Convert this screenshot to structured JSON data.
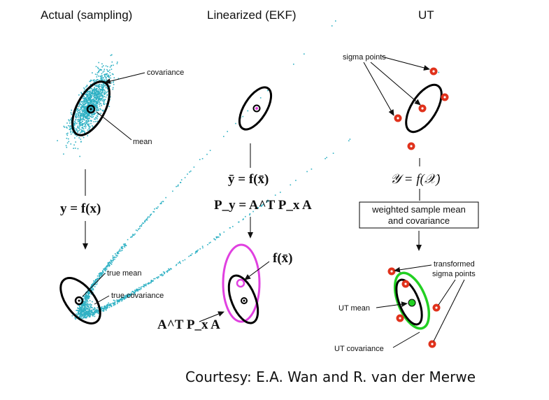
{
  "titles": {
    "actual": "Actual (sampling)",
    "ekf": "Linearized (EKF)",
    "ut": "UT"
  },
  "actual": {
    "covariance": "covariance",
    "mean": "mean",
    "equation": "y = f(x)",
    "true_mean": "true mean",
    "true_covariance": "true covariance"
  },
  "ekf": {
    "eq1": "ȳ = f(x̄)",
    "eq2": "P_y = A^T P_x A",
    "fx": "f(x̄)",
    "atpa": "A^T P_x A"
  },
  "ut": {
    "sigma_points": "sigma points",
    "equation": "𝒴 = f(𝒳)",
    "box_line1": "weighted sample mean",
    "box_line2": "and covariance",
    "transformed_line1": "transformed",
    "transformed_line2": "sigma points",
    "ut_mean": "UT mean",
    "ut_covariance": "UT covariance"
  },
  "credit": "Courtesy: E.A. Wan and R. van der Merwe",
  "colors": {
    "samples": "#2fb1c4",
    "sigma": "#e0321c",
    "ekf_ellipse": "#e040e0",
    "ut_ellipse": "#22d022"
  }
}
